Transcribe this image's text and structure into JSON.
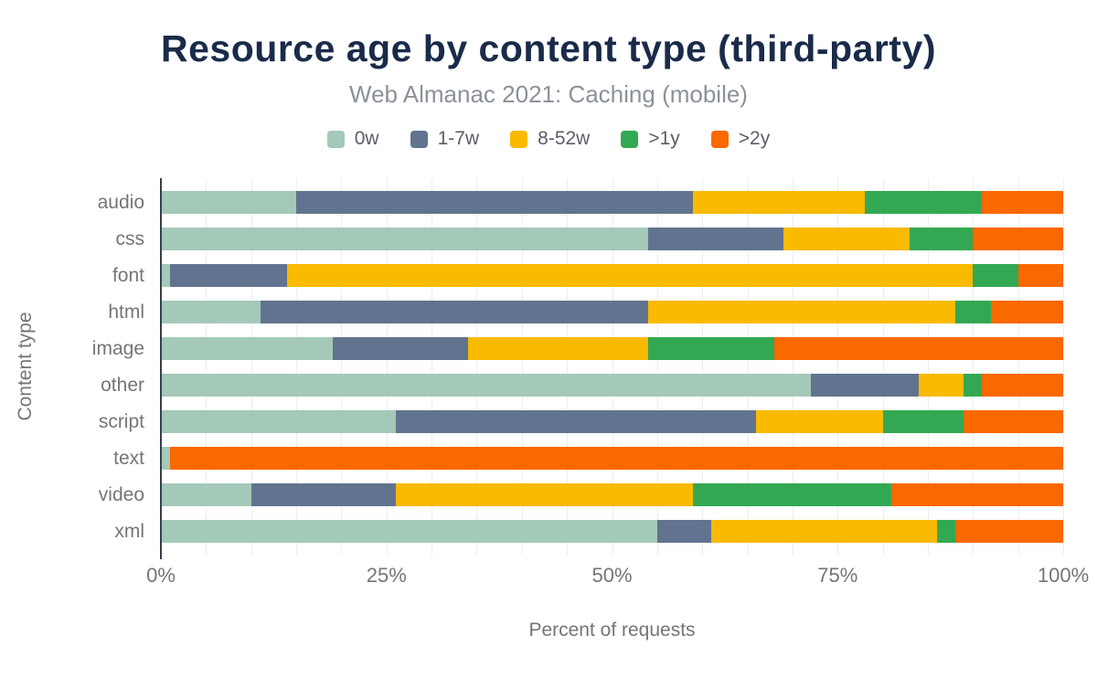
{
  "chart": {
    "title": "Resource age by content type (third-party)",
    "subtitle": "Web Almanac 2021: Caching (mobile)",
    "xlabel": "Percent of requests",
    "ylabel": "Content type"
  },
  "chart_data": {
    "type": "bar",
    "orientation": "horizontal",
    "stacked": true,
    "title": "Resource age by content type (third-party)",
    "subtitle": "Web Almanac 2021: Caching (mobile)",
    "xlabel": "Percent of requests",
    "ylabel": "Content type",
    "xlim": [
      0,
      100
    ],
    "x_ticks": [
      "0%",
      "25%",
      "50%",
      "75%",
      "100%"
    ],
    "x_tick_values": [
      0,
      25,
      50,
      75,
      100
    ],
    "grid": "vertical gridlines every 5%",
    "legend_position": "top",
    "categories": [
      "audio",
      "css",
      "font",
      "html",
      "image",
      "other",
      "script",
      "text",
      "video",
      "xml"
    ],
    "series": [
      {
        "name": "0w",
        "color": "#a4c9b8",
        "values": [
          15,
          54,
          1,
          11,
          19,
          72,
          26,
          1,
          10,
          55
        ]
      },
      {
        "name": "1-7w",
        "color": "#62738f",
        "values": [
          44,
          15,
          13,
          43,
          15,
          12,
          40,
          0,
          16,
          6
        ]
      },
      {
        "name": "8-52w",
        "color": "#f9ba00",
        "values": [
          19,
          14,
          76,
          34,
          20,
          5,
          14,
          0,
          33,
          25
        ]
      },
      {
        "name": ">1y",
        "color": "#33a852",
        "values": [
          13,
          7,
          5,
          4,
          14,
          2,
          9,
          0,
          22,
          2
        ]
      },
      {
        "name": ">2y",
        "color": "#fa6800",
        "values": [
          9,
          10,
          5,
          8,
          32,
          9,
          11,
          99,
          19,
          12
        ]
      }
    ]
  },
  "colors": {
    "title": "#1a2b49",
    "subtitle": "#8b9199",
    "axis_text": "#757575",
    "axis_line": "#33404f",
    "gridline": "#ededed"
  }
}
